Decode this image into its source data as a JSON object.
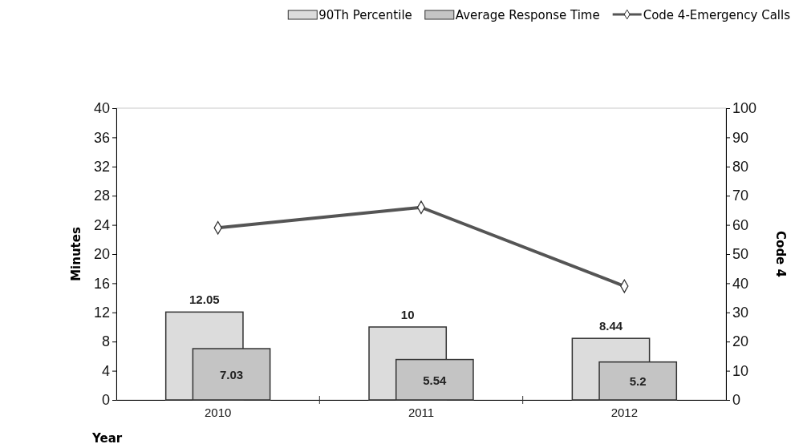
{
  "chart_data": {
    "type": "bar",
    "categories": [
      "2010",
      "2011",
      "2012"
    ],
    "xlabel": "Year",
    "ylabel": "Minutes",
    "y2label": "Code 4",
    "ylim": [
      0,
      40
    ],
    "yticks": [
      0,
      4,
      8,
      12,
      16,
      20,
      24,
      28,
      32,
      36,
      40
    ],
    "y2lim": [
      0,
      100
    ],
    "y2ticks": [
      0,
      10,
      20,
      30,
      40,
      50,
      60,
      70,
      80,
      90,
      100
    ],
    "series": [
      {
        "name": "90Th Percentile",
        "color": "#dcdcdc",
        "values": [
          12.05,
          10,
          8.44
        ],
        "value_labels": [
          "12.05",
          "10",
          "8.44"
        ]
      },
      {
        "name": "Average Response Time",
        "color": "#c4c4c4",
        "values": [
          7.03,
          5.54,
          5.2
        ],
        "value_labels": [
          "7.03",
          "5.54",
          "5.2"
        ]
      },
      {
        "name": "Code 4-Emergency Calls",
        "type": "line",
        "axis": "y2",
        "color": "#555555",
        "marker": "diamond",
        "values": [
          59,
          66,
          39
        ]
      }
    ],
    "legend": "top",
    "grid": false
  }
}
